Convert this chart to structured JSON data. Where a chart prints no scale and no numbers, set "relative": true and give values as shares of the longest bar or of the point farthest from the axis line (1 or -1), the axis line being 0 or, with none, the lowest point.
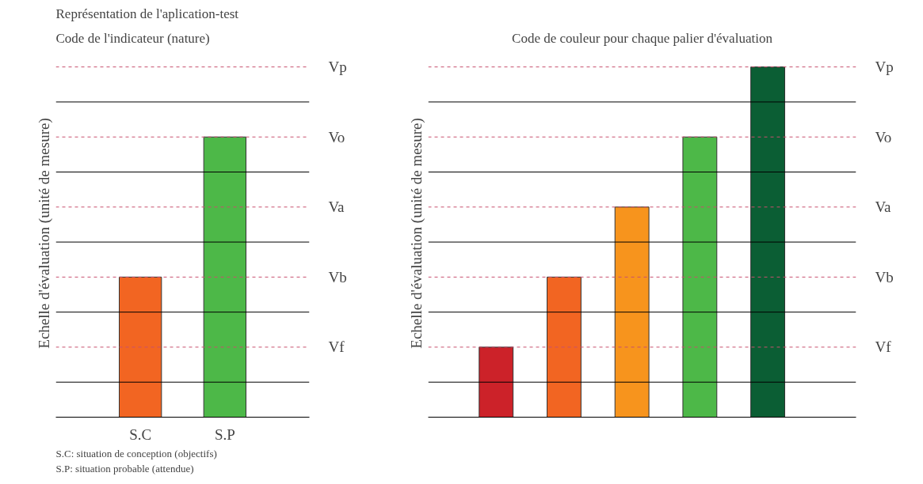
{
  "chart_data": [
    {
      "type": "bar",
      "title": "Représentation de l'aplication-test",
      "subtitle": "Code de l'indicateur (nature)",
      "ylabel": "Echelle d'évaluation (unité de mesure)",
      "categories": [
        "S.C",
        "S.P"
      ],
      "values": [
        0.5,
        1
      ],
      "colors": [
        "#f26522",
        "#4db848"
      ],
      "relative": true,
      "ref_lines": [
        {
          "axis": "y",
          "value": 0.25,
          "label": "Vf",
          "color": "#c8506e",
          "line_style": "dashed"
        },
        {
          "axis": "y",
          "value": 0.5,
          "label": "Vb",
          "color": "#c8506e",
          "line_style": "dashed"
        },
        {
          "axis": "y",
          "value": 0.75,
          "label": "Va",
          "color": "#c8506e",
          "line_style": "dashed"
        },
        {
          "axis": "y",
          "value": 1,
          "label": "Vo",
          "color": "#c8506e",
          "line_style": "dashed"
        },
        {
          "axis": "y",
          "value": 1.25,
          "label": "Vp",
          "color": "#c8506e",
          "line_style": "dashed"
        },
        {
          "axis": "y",
          "value": 0.125,
          "color": "#000000",
          "line_style": "solid"
        },
        {
          "axis": "y",
          "value": 0.375,
          "color": "#000000",
          "line_style": "solid"
        },
        {
          "axis": "y",
          "value": 0.625,
          "color": "#000000",
          "line_style": "solid"
        },
        {
          "axis": "y",
          "value": 0.875,
          "color": "#000000",
          "line_style": "solid"
        },
        {
          "axis": "y",
          "value": 1.125,
          "color": "#000000",
          "line_style": "solid"
        }
      ],
      "annotations": [
        "S.C: situation de conception (objectifs)",
        "S.P: situation probable (attendue)"
      ]
    },
    {
      "type": "bar",
      "title": "Code de couleur pour chaque palier d'évaluation",
      "ylabel": "Echelle d'évaluation (unité de mesure)",
      "categories": [
        null,
        null,
        null,
        null,
        null
      ],
      "values": [
        0.2,
        0.4,
        0.6,
        0.8,
        1
      ],
      "colors": [
        "#cc2229",
        "#f26522",
        "#f7941d",
        "#4db848",
        "#0b5e34"
      ],
      "relative": true,
      "ref_lines": [
        {
          "axis": "y",
          "value": 0.2,
          "label": "Vf",
          "color": "#c8506e",
          "line_style": "dashed"
        },
        {
          "axis": "y",
          "value": 0.4,
          "label": "Vb",
          "color": "#c8506e",
          "line_style": "dashed"
        },
        {
          "axis": "y",
          "value": 0.6,
          "label": "Va",
          "color": "#c8506e",
          "line_style": "dashed"
        },
        {
          "axis": "y",
          "value": 0.8,
          "label": "Vo",
          "color": "#c8506e",
          "line_style": "dashed"
        },
        {
          "axis": "y",
          "value": 1,
          "label": "Vp",
          "color": "#c8506e",
          "line_style": "dashed"
        },
        {
          "axis": "y",
          "value": 0.1,
          "color": "#000000",
          "line_style": "solid"
        },
        {
          "axis": "y",
          "value": 0.3,
          "color": "#000000",
          "line_style": "solid"
        },
        {
          "axis": "y",
          "value": 0.5,
          "color": "#000000",
          "line_style": "solid"
        },
        {
          "axis": "y",
          "value": 0.7,
          "color": "#000000",
          "line_style": "solid"
        },
        {
          "axis": "y",
          "value": 0.9,
          "color": "#000000",
          "line_style": "solid"
        }
      ]
    }
  ]
}
